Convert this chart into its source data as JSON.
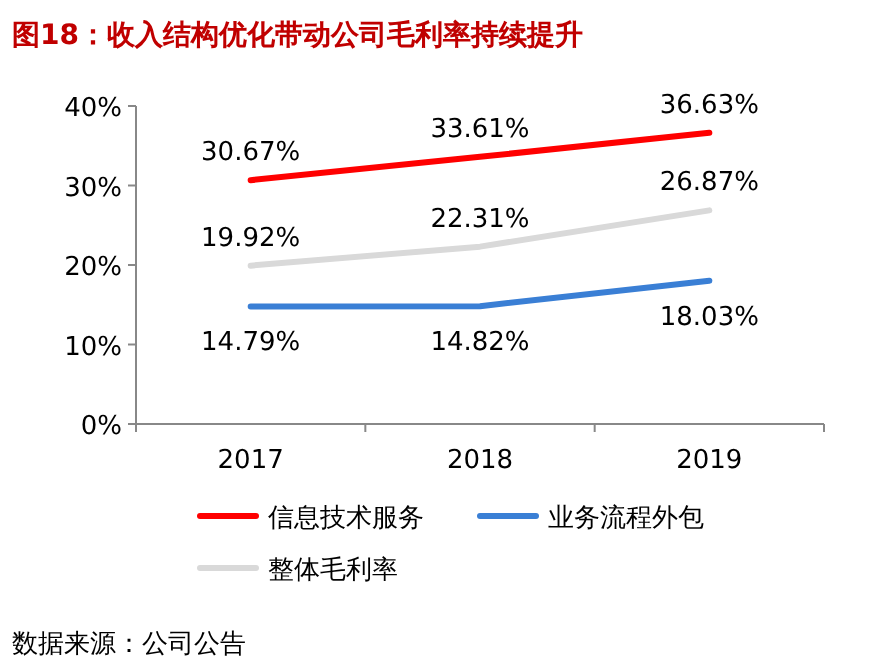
{
  "chart_data": {
    "type": "line",
    "title": "图18：收入结构优化带动公司毛利率持续提升",
    "categories": [
      "2017",
      "2018",
      "2019"
    ],
    "series": [
      {
        "name": "信息技术服务",
        "color": "#ff0000",
        "values": [
          30.67,
          33.61,
          36.63
        ],
        "value_labels": [
          "30.67%",
          "33.61%",
          "36.63%"
        ]
      },
      {
        "name": "业务流程外包",
        "color": "#3a7fd5",
        "values": [
          14.79,
          14.82,
          18.03
        ],
        "value_labels": [
          "14.79%",
          "14.82%",
          "18.03%"
        ]
      },
      {
        "name": "整体毛利率",
        "color": "#d9d9d9",
        "values": [
          19.92,
          22.31,
          26.87
        ],
        "value_labels": [
          "19.92%",
          "22.31%",
          "26.87%"
        ]
      }
    ],
    "ylim": [
      0,
      40
    ],
    "yticks": [
      {
        "value": 0,
        "label": "0%"
      },
      {
        "value": 10,
        "label": "10%"
      },
      {
        "value": 20,
        "label": "20%"
      },
      {
        "value": 30,
        "label": "30%"
      },
      {
        "value": 40,
        "label": "40%"
      }
    ],
    "grid": false,
    "legend": "bottom",
    "marker": "none",
    "line_style": "solid",
    "annotations": [
      "数据来源：公司公告"
    ]
  }
}
